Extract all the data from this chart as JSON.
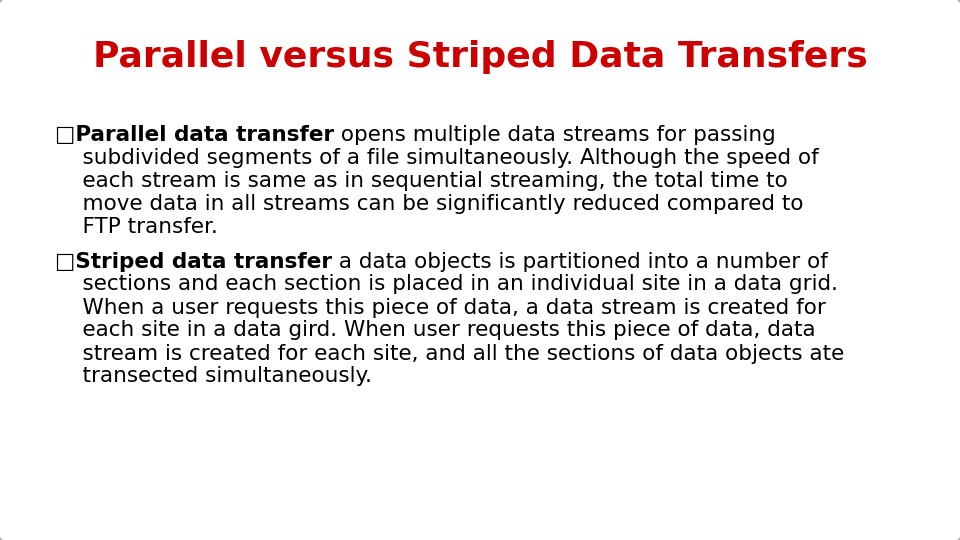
{
  "title": "Parallel versus Striped Data Transfers",
  "title_color": "#CC0000",
  "title_fontsize": 26,
  "background_color": "#FFFFFF",
  "border_color": "#AAAAAA",
  "text_color": "#000000",
  "body_fontsize": 15.5,
  "figsize": [
    9.6,
    5.4
  ],
  "dpi": 100,
  "bullet1_bold": "□Parallel data transfer",
  "bullet1_rest_line1": " opens multiple data streams for passing",
  "bullet1_rest": [
    "    subdivided segments of a file simultaneously. Although the speed of",
    "    each stream is same as in sequential streaming, the total time to",
    "    move data in all streams can be significantly reduced compared to",
    "    FTP transfer."
  ],
  "bullet2_bold": "□Striped data transfer",
  "bullet2_rest_line1": " a data objects is partitioned into a number of",
  "bullet2_rest": [
    "    sections and each section is placed in an individual site in a data grid.",
    "    When a user requests this piece of data, a data stream is created for",
    "    each site in a data gird. When user requests this piece of data, data",
    "    stream is created for each site, and all the sections of data objects ate",
    "    transected simultaneously."
  ]
}
